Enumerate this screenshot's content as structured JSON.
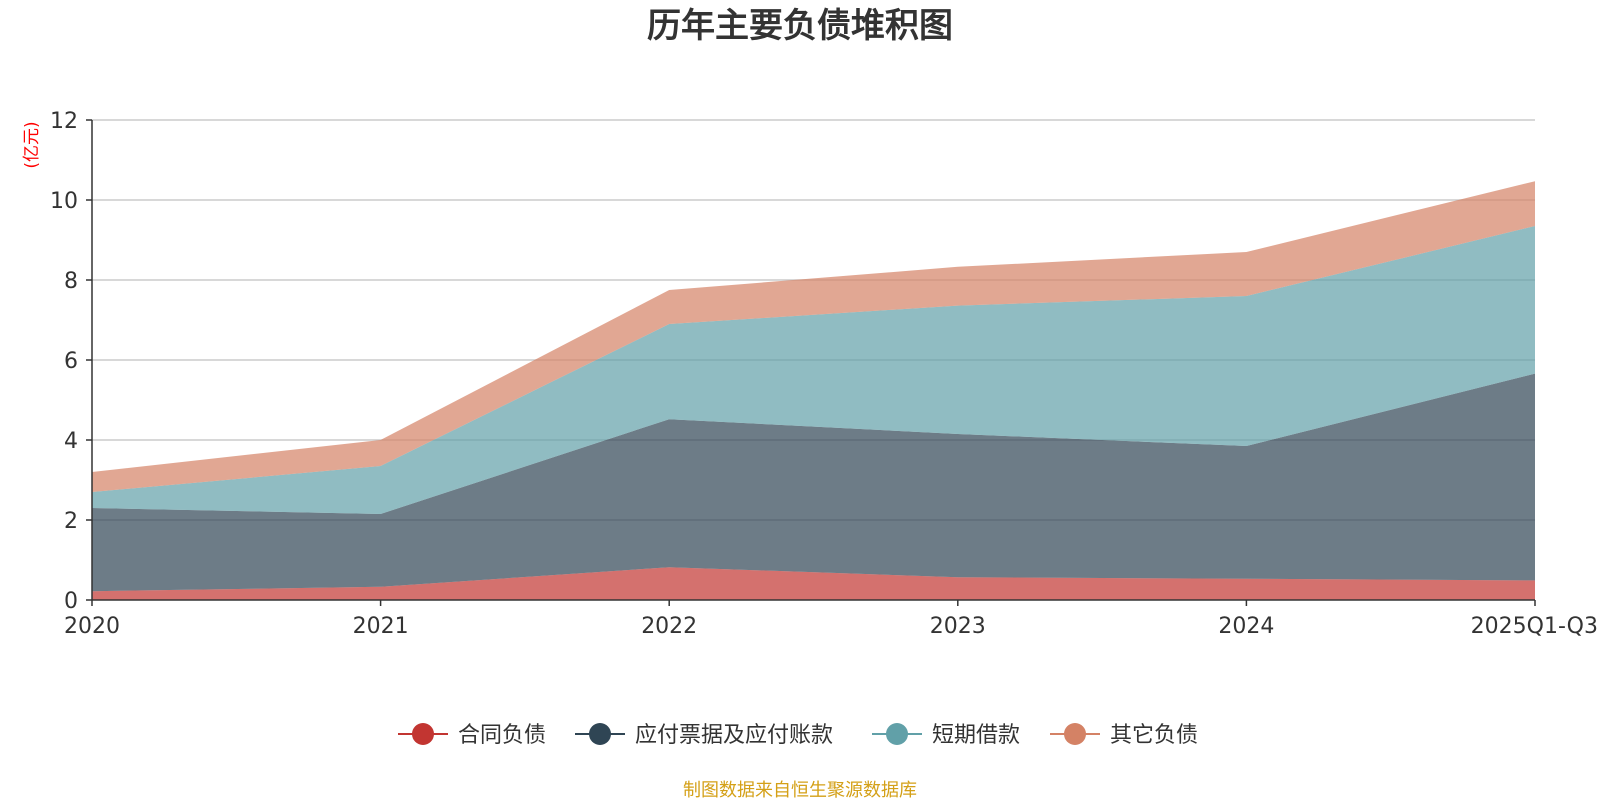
{
  "chart_data": {
    "type": "area",
    "stacked": true,
    "title": "历年主要负债堆积图",
    "unit_label": "(亿元)",
    "categories": [
      "2020",
      "2021",
      "2022",
      "2023",
      "2024",
      "2025Q1-Q3"
    ],
    "ylim": [
      0,
      12
    ],
    "y_ticks": [
      "0",
      "2",
      "4",
      "6",
      "8",
      "10",
      "12"
    ],
    "grid": true,
    "legend_position": "bottom",
    "series": [
      {
        "name": "合同负债",
        "color": "#c23531",
        "values": [
          0.22,
          0.33,
          0.82,
          0.57,
          0.53,
          0.49
        ]
      },
      {
        "name": "应付票据及应付账款",
        "color": "#2f4554",
        "values": [
          2.08,
          1.82,
          3.7,
          3.58,
          3.32,
          5.17
        ]
      },
      {
        "name": "短期借款",
        "color": "#61a0a8",
        "values": [
          0.4,
          1.2,
          2.38,
          3.21,
          3.75,
          3.69
        ]
      },
      {
        "name": "其它负债",
        "color": "#d48265",
        "values": [
          0.5,
          0.65,
          0.85,
          0.97,
          1.1,
          1.12
        ]
      }
    ]
  },
  "source_note": "制图数据来自恒生聚源数据库"
}
